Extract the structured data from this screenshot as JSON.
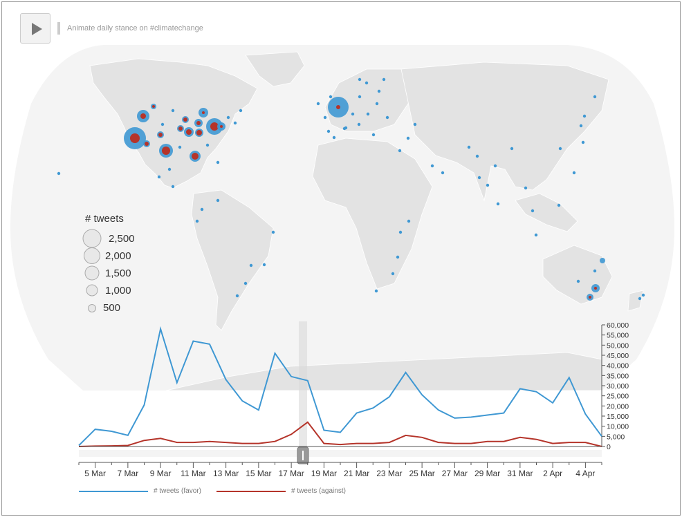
{
  "toolbar": {
    "play_icon": "play-icon",
    "animate_label": "Animate daily stance on #climatechange"
  },
  "map_legend": {
    "title": "# tweets",
    "sizes": [
      "2,500",
      "2,000",
      "1,500",
      "1,000",
      "500"
    ]
  },
  "colors": {
    "favor": "#3f98d3",
    "against": "#b5342a",
    "land": "#e3e3e3",
    "ocean": "#f4f4f4"
  },
  "chart_data": {
    "type": "line",
    "x": [
      "4 Mar",
      "5 Mar",
      "6 Mar",
      "7 Mar",
      "8 Mar",
      "9 Mar",
      "10 Mar",
      "11 Mar",
      "12 Mar",
      "13 Mar",
      "14 Mar",
      "15 Mar",
      "16 Mar",
      "17 Mar",
      "18 Mar",
      "19 Mar",
      "20 Mar",
      "21 Mar",
      "22 Mar",
      "23 Mar",
      "24 Mar",
      "25 Mar",
      "26 Mar",
      "27 Mar",
      "28 Mar",
      "29 Mar",
      "30 Mar",
      "31 Mar",
      "1 Apr",
      "2 Apr",
      "3 Apr",
      "4 Apr",
      "5 Apr"
    ],
    "series": [
      {
        "name": "# tweets (favor)",
        "color": "#3f98d3",
        "values": [
          500,
          8500,
          7500,
          5500,
          20500,
          58000,
          31500,
          52000,
          50500,
          33000,
          22500,
          18000,
          46000,
          34500,
          32500,
          8000,
          7000,
          16500,
          19000,
          24500,
          36500,
          25500,
          18000,
          14000,
          14500,
          15500,
          16500,
          28500,
          27000,
          21500,
          34000,
          16000,
          5000
        ]
      },
      {
        "name": "# tweets (against)",
        "color": "#b5342a",
        "values": [
          0,
          200,
          300,
          500,
          3000,
          4000,
          2000,
          2000,
          2500,
          2000,
          1500,
          1500,
          2500,
          6000,
          12000,
          1500,
          1000,
          1500,
          1500,
          2000,
          5500,
          4500,
          2000,
          1500,
          1500,
          2500,
          2500,
          4500,
          3500,
          1500,
          2000,
          2000,
          0
        ]
      }
    ],
    "xticks": [
      "5 Mar",
      "7 Mar",
      "9 Mar",
      "11 Mar",
      "13 Mar",
      "15 Mar",
      "17 Mar",
      "19 Mar",
      "21 Mar",
      "23 Mar",
      "25 Mar",
      "27 Mar",
      "29 Mar",
      "31 Mar",
      "2 Apr",
      "4 Apr"
    ],
    "yticks": [
      "0",
      "5,000",
      "10,000",
      "15,000",
      "20,000",
      "25,000",
      "30,000",
      "35,000",
      "40,000",
      "45,000",
      "50,000",
      "55,000",
      "60,000"
    ],
    "ylim": [
      0,
      60000
    ],
    "slider_position": "19 Mar",
    "legend": [
      "# tweets (favor)",
      "# tweets (against)"
    ],
    "grid": false
  }
}
